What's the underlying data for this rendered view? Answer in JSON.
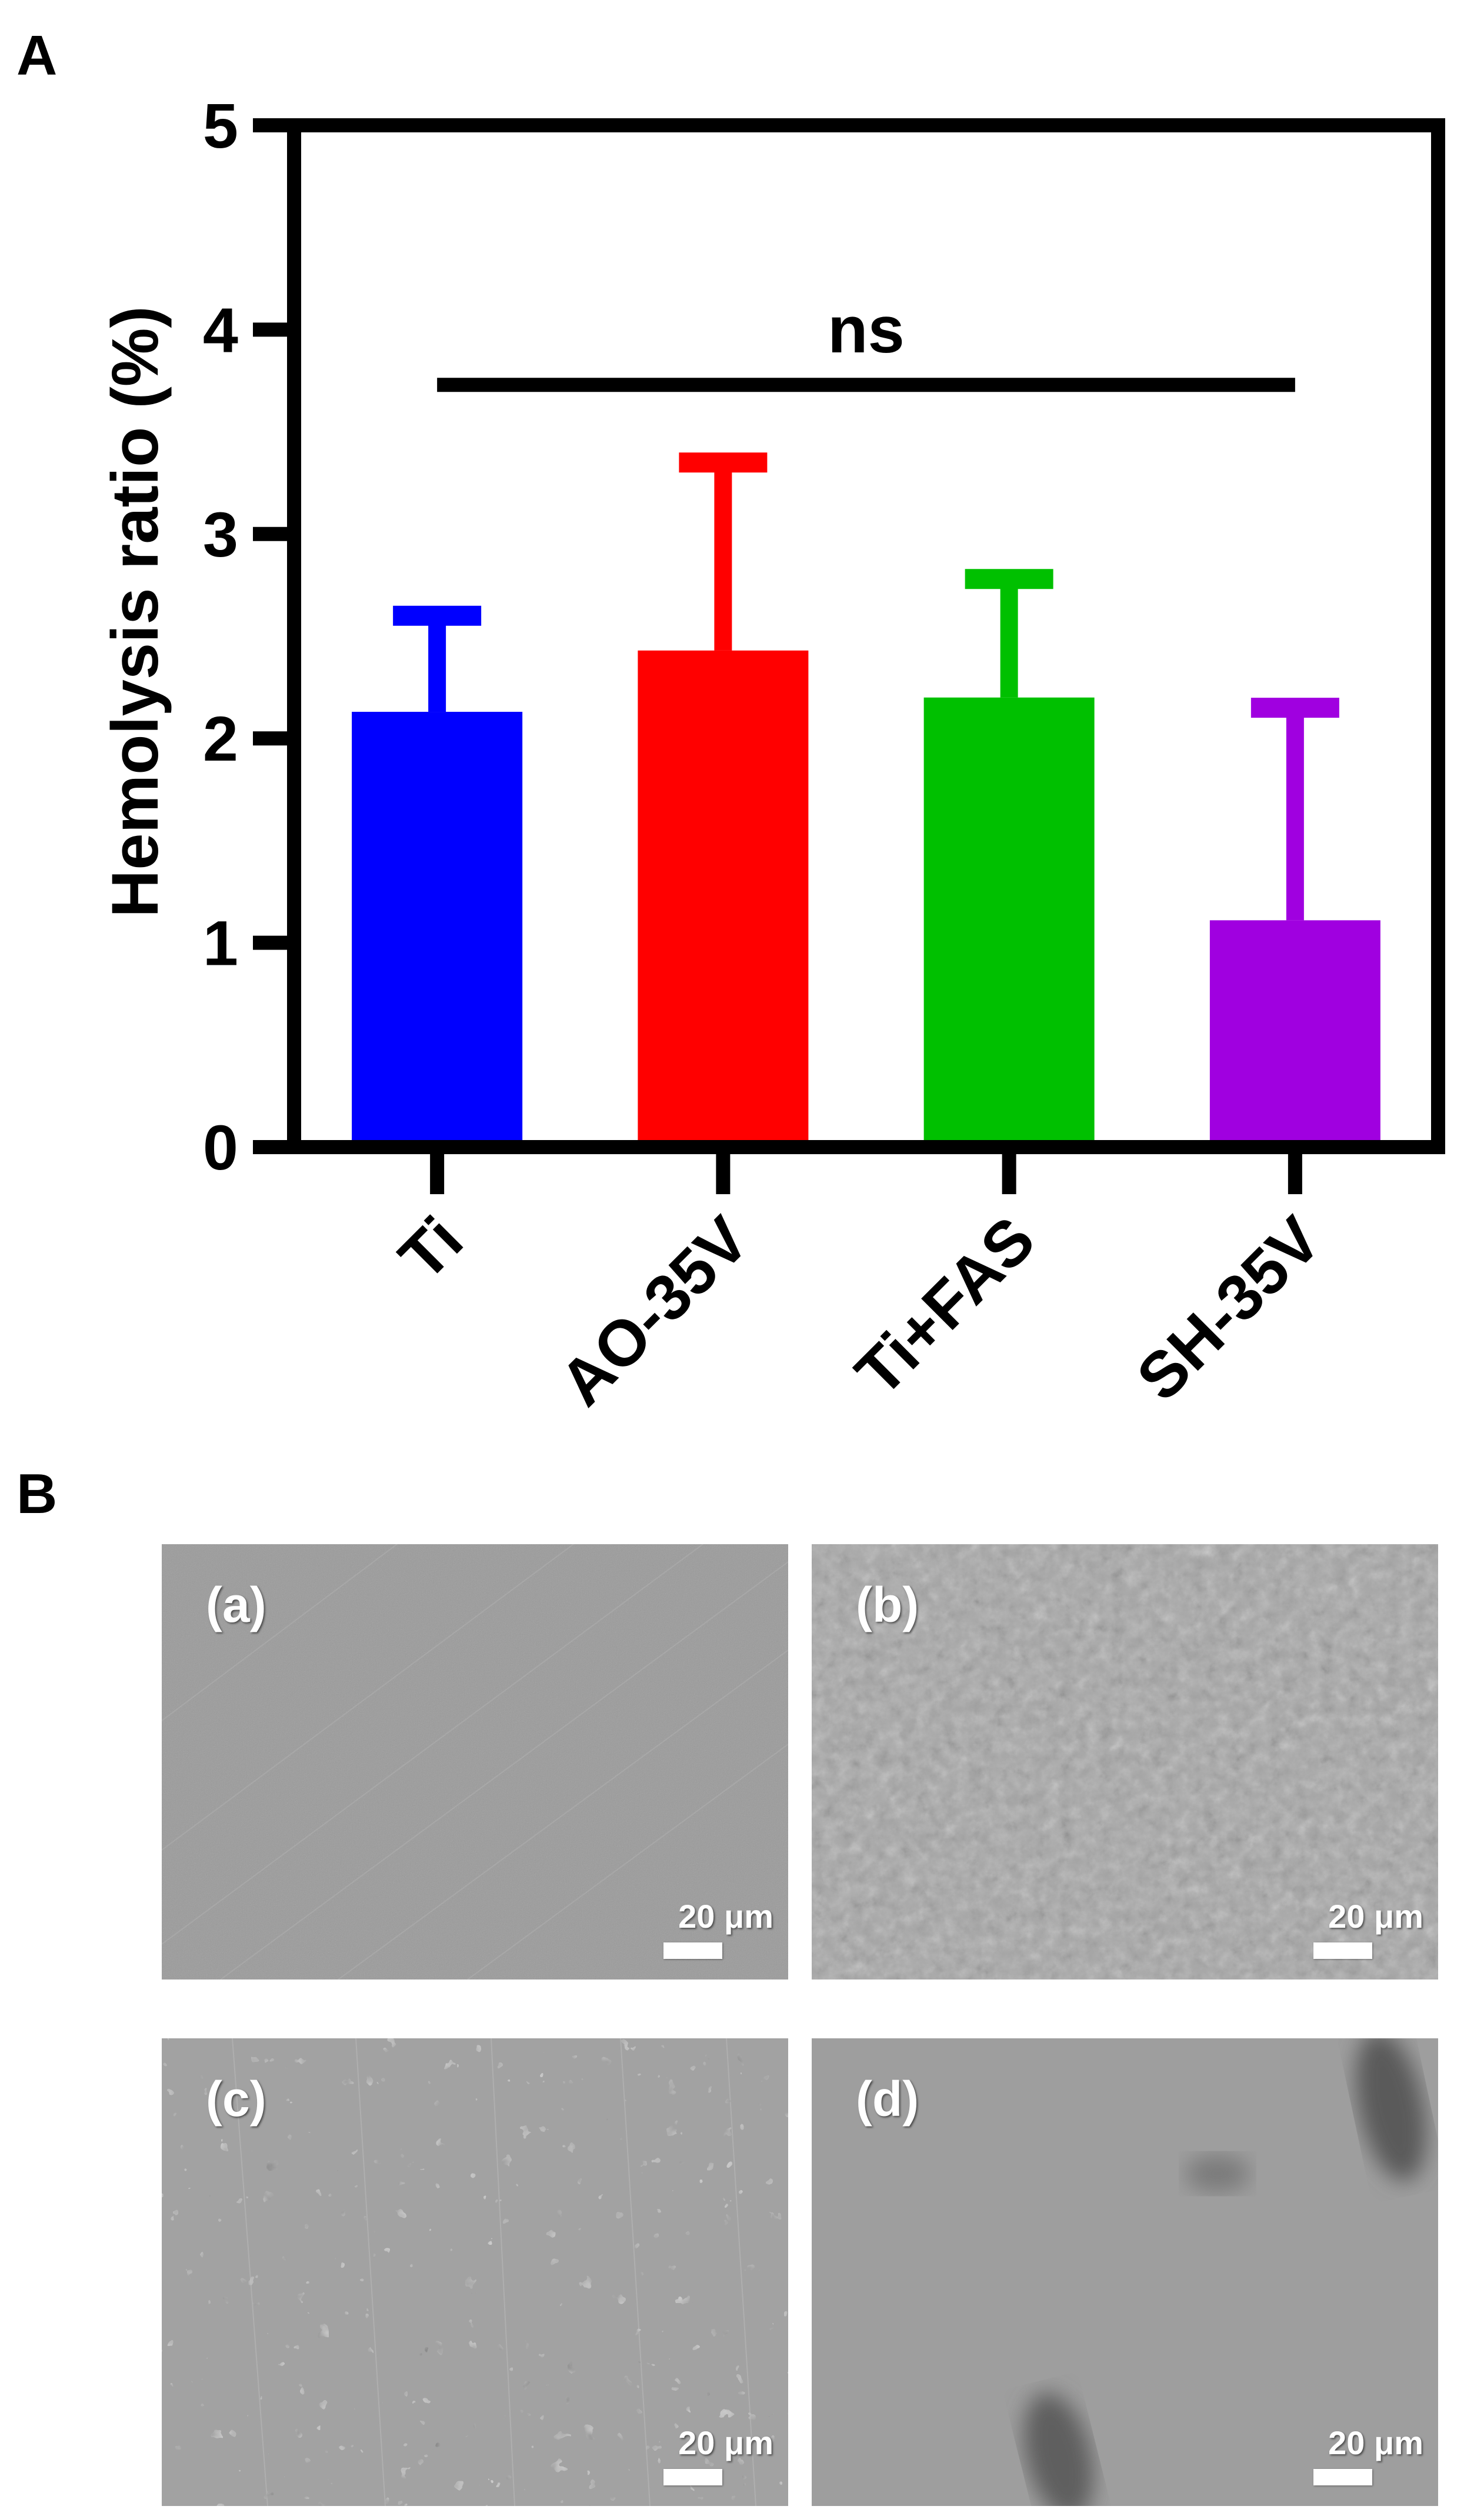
{
  "panels": {
    "a_label": "A",
    "b_label": "B"
  },
  "chart_data": {
    "type": "bar",
    "title": "",
    "xlabel": "",
    "ylabel": "Hemolysis ratio (%)",
    "ylim": [
      0,
      5
    ],
    "yticks": [
      0,
      1,
      2,
      3,
      4,
      5
    ],
    "categories": [
      "Ti",
      "AO-35V",
      "Ti+FAS",
      "SH-35V"
    ],
    "values": [
      2.13,
      2.43,
      2.2,
      1.11
    ],
    "error_upper": [
      0.47,
      0.92,
      0.58,
      1.04
    ],
    "colors": [
      "#0000FF",
      "#FF0000",
      "#00C000",
      "#A000E0"
    ],
    "significance": {
      "label": "ns",
      "from": "Ti",
      "to": "SH-35V",
      "y": 3.73
    }
  },
  "sem_images": [
    {
      "tag": "(a)",
      "scale": "20 μm"
    },
    {
      "tag": "(b)",
      "scale": "20 μm"
    },
    {
      "tag": "(c)",
      "scale": "20 μm"
    },
    {
      "tag": "(d)",
      "scale": "20 μm"
    }
  ]
}
